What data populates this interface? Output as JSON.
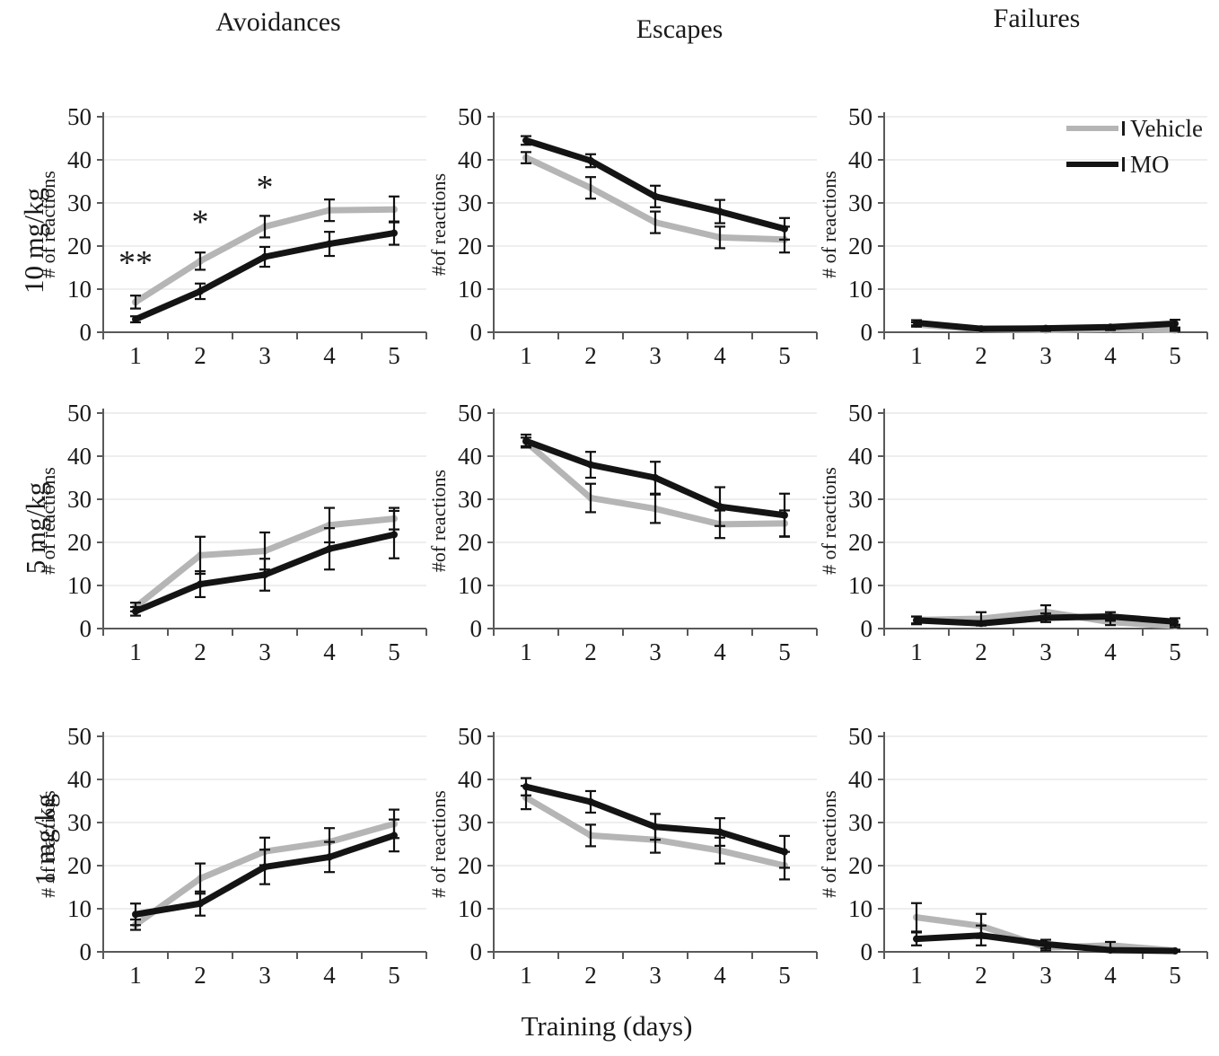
{
  "figure": {
    "column_titles": [
      "Avoidances",
      "Escapes",
      "Failures"
    ],
    "row_labels": [
      "10 mg/kg",
      "5 mg/kg",
      "1 mg/kg"
    ],
    "x_axis_title": "Training (days)",
    "legend": {
      "position": "top-right-panel",
      "items": [
        {
          "label": "Vehicle",
          "color": "#b5b5b5"
        },
        {
          "label": "MO",
          "color": "#141414"
        }
      ]
    },
    "colors": {
      "vehicle": "#b5b5b5",
      "mo": "#141414",
      "error_bar": "#111111",
      "gridline": "#e8e8e8",
      "axis": "#595959"
    }
  },
  "chart_data": [
    {
      "id": "avoidances-10mgkg",
      "type": "line",
      "column": "Avoidances",
      "row": "10 mg/kg",
      "x": [
        1,
        2,
        3,
        4,
        5
      ],
      "ylabel": "# of reactions",
      "ylim": [
        0,
        50
      ],
      "yticks": [
        0,
        10,
        20,
        30,
        40,
        50
      ],
      "grid": true,
      "series": [
        {
          "name": "Vehicle",
          "color": "#b5b5b5",
          "values": [
            7,
            16.5,
            24.5,
            28.3,
            28.5
          ],
          "errors": [
            1.5,
            2,
            2.5,
            2.5,
            3
          ]
        },
        {
          "name": "MO",
          "color": "#141414",
          "values": [
            3,
            9.5,
            17.5,
            20.5,
            23
          ],
          "errors": [
            0.7,
            1.8,
            2.3,
            2.8,
            2.7
          ]
        }
      ],
      "annotations": [
        {
          "day": 1,
          "y": 13.5,
          "text": "**"
        },
        {
          "day": 2,
          "y": 23,
          "text": "*"
        },
        {
          "day": 3,
          "y": 31,
          "text": "*"
        }
      ]
    },
    {
      "id": "escapes-10mgkg",
      "type": "line",
      "column": "Escapes",
      "row": "10 mg/kg",
      "x": [
        1,
        2,
        3,
        4,
        5
      ],
      "ylabel": "#of reactions",
      "ylim": [
        0,
        50
      ],
      "yticks": [
        0,
        10,
        20,
        30,
        40,
        50
      ],
      "grid": true,
      "series": [
        {
          "name": "Vehicle",
          "color": "#b5b5b5",
          "values": [
            40.5,
            33.5,
            25.5,
            22,
            21.5
          ],
          "errors": [
            1.3,
            2.5,
            2.5,
            2.5,
            3
          ]
        },
        {
          "name": "MO",
          "color": "#141414",
          "values": [
            44.5,
            39.8,
            31.5,
            28,
            24
          ],
          "errors": [
            1,
            1.5,
            2.5,
            2.7,
            2.5
          ]
        }
      ],
      "annotations": []
    },
    {
      "id": "failures-10mgkg",
      "type": "line",
      "column": "Failures",
      "row": "10 mg/kg",
      "x": [
        1,
        2,
        3,
        4,
        5
      ],
      "ylabel": "# of reactions",
      "ylim": [
        0,
        50
      ],
      "yticks": [
        0,
        10,
        20,
        30,
        40,
        50
      ],
      "grid": true,
      "series": [
        {
          "name": "Vehicle",
          "color": "#b5b5b5",
          "values": [
            1.8,
            0.7,
            0.5,
            0.7,
            0.5
          ],
          "errors": [
            0.5,
            0.2,
            0.2,
            0.2,
            0.2
          ]
        },
        {
          "name": "MO",
          "color": "#141414",
          "values": [
            2.2,
            0.8,
            0.9,
            1.2,
            2
          ],
          "errors": [
            0.6,
            0.2,
            0.3,
            0.3,
            0.9
          ]
        }
      ],
      "annotations": []
    },
    {
      "id": "avoidances-5mgkg",
      "type": "line",
      "column": "Avoidances",
      "row": "5 mg/kg",
      "x": [
        1,
        2,
        3,
        4,
        5
      ],
      "ylabel": "# of reactions",
      "ylim": [
        0,
        50
      ],
      "yticks": [
        0,
        10,
        20,
        30,
        40,
        50
      ],
      "grid": true,
      "series": [
        {
          "name": "Vehicle",
          "color": "#b5b5b5",
          "values": [
            5,
            17,
            18,
            24,
            25.5
          ],
          "errors": [
            1,
            4.3,
            4.3,
            4,
            2.5
          ]
        },
        {
          "name": "MO",
          "color": "#141414",
          "values": [
            4,
            10.3,
            12.5,
            18.5,
            21.8
          ],
          "errors": [
            1,
            3,
            3.7,
            4.8,
            5.5
          ]
        }
      ],
      "annotations": []
    },
    {
      "id": "escapes-5mgkg",
      "type": "line",
      "column": "Escapes",
      "row": "5 mg/kg",
      "x": [
        1,
        2,
        3,
        4,
        5
      ],
      "ylabel": "#of reactions",
      "ylim": [
        0,
        50
      ],
      "yticks": [
        0,
        10,
        20,
        30,
        40,
        50
      ],
      "grid": true,
      "series": [
        {
          "name": "Vehicle",
          "color": "#b5b5b5",
          "values": [
            43.3,
            30.3,
            27.8,
            24.2,
            24.4
          ],
          "errors": [
            1,
            3.3,
            3.3,
            3.2,
            3
          ]
        },
        {
          "name": "MO",
          "color": "#141414",
          "values": [
            43.5,
            38,
            35,
            28.3,
            26.3
          ],
          "errors": [
            1.5,
            3,
            3.7,
            4.5,
            5
          ]
        }
      ],
      "annotations": []
    },
    {
      "id": "failures-5mgkg",
      "type": "line",
      "column": "Failures",
      "row": "5 mg/kg",
      "x": [
        1,
        2,
        3,
        4,
        5
      ],
      "ylabel": "# of reactions",
      "ylim": [
        0,
        50
      ],
      "yticks": [
        0,
        10,
        20,
        30,
        40,
        50
      ],
      "grid": true,
      "series": [
        {
          "name": "Vehicle",
          "color": "#b5b5b5",
          "values": [
            2,
            2.3,
            3.9,
            1.5,
            0.6
          ],
          "errors": [
            0.8,
            1.5,
            1.5,
            0.7,
            0.3
          ]
        },
        {
          "name": "MO",
          "color": "#141414",
          "values": [
            1.9,
            1.2,
            2.5,
            2.8,
            1.6
          ],
          "errors": [
            0.9,
            0.5,
            1,
            1,
            0.8
          ]
        }
      ],
      "annotations": []
    },
    {
      "id": "avoidances-1mgkg",
      "type": "line",
      "column": "Avoidances",
      "row": "1 mg/kg",
      "x": [
        1,
        2,
        3,
        4,
        5
      ],
      "ylabel": "# of reactions",
      "ylim": [
        0,
        50
      ],
      "yticks": [
        0,
        10,
        20,
        30,
        40,
        50
      ],
      "grid": true,
      "series": [
        {
          "name": "Vehicle",
          "color": "#b5b5b5",
          "values": [
            6.3,
            17,
            23.3,
            25.5,
            29.7
          ],
          "errors": [
            1.2,
            3.5,
            3.2,
            3.2,
            3.3
          ]
        },
        {
          "name": "MO",
          "color": "#141414",
          "values": [
            8.7,
            11.2,
            19.7,
            22,
            27
          ],
          "errors": [
            2.5,
            2.8,
            4,
            3.5,
            3.7
          ]
        }
      ],
      "annotations": []
    },
    {
      "id": "escapes-1mgkg",
      "type": "line",
      "column": "Escapes",
      "row": "1 mg/kg",
      "x": [
        1,
        2,
        3,
        4,
        5
      ],
      "ylabel": "# of reactions",
      "ylim": [
        0,
        50
      ],
      "yticks": [
        0,
        10,
        20,
        30,
        40,
        50
      ],
      "grid": true,
      "series": [
        {
          "name": "Vehicle",
          "color": "#b5b5b5",
          "values": [
            35.8,
            27,
            26,
            23.5,
            20
          ],
          "errors": [
            2.7,
            2.5,
            3,
            3,
            3.2
          ]
        },
        {
          "name": "MO",
          "color": "#141414",
          "values": [
            38.3,
            34.8,
            29,
            27.8,
            23.2
          ],
          "errors": [
            2,
            2.5,
            3,
            3.2,
            3.7
          ]
        }
      ],
      "annotations": []
    },
    {
      "id": "failures-1mgkg",
      "type": "line",
      "column": "Failures",
      "row": "1 mg/kg",
      "x": [
        1,
        2,
        3,
        4,
        5
      ],
      "ylabel": "# of reactions",
      "ylim": [
        0,
        50
      ],
      "yticks": [
        0,
        10,
        20,
        30,
        40,
        50
      ],
      "grid": true,
      "series": [
        {
          "name": "Vehicle",
          "color": "#b5b5b5",
          "values": [
            8,
            6,
            1,
            1.5,
            0.3
          ],
          "errors": [
            3.3,
            2.8,
            0.7,
            0.8,
            0.2
          ]
        },
        {
          "name": "MO",
          "color": "#141414",
          "values": [
            3,
            3.8,
            1.8,
            0.4,
            0.2
          ],
          "errors": [
            1.5,
            2.3,
            1,
            0.3,
            0.2
          ]
        }
      ],
      "annotations": []
    }
  ]
}
